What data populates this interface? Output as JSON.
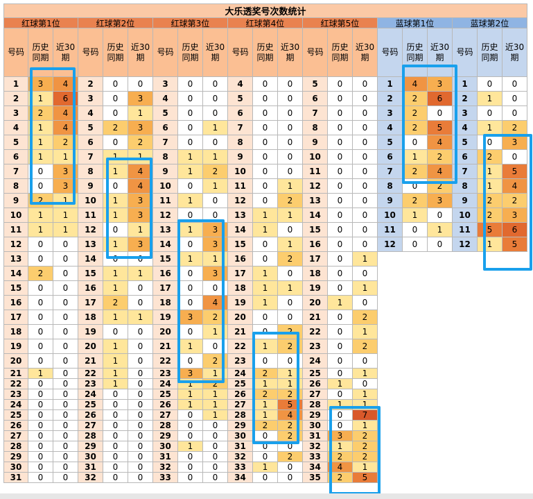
{
  "title": "大乐透奖号次数统计",
  "groups": [
    {
      "label": "红球第1位",
      "kind": "red"
    },
    {
      "label": "红球第2位",
      "kind": "red"
    },
    {
      "label": "红球第3位",
      "kind": "red"
    },
    {
      "label": "红球第4位",
      "kind": "red"
    },
    {
      "label": "红球第5位",
      "kind": "red"
    },
    {
      "label": "蓝球第1位",
      "kind": "blue"
    },
    {
      "label": "蓝球第2位",
      "kind": "blue"
    }
  ],
  "headers": {
    "num": "号码",
    "hist": "历史同期",
    "last30": "近30期"
  },
  "colors": {
    "red_group": "#e9824f",
    "blue_group": "#8fb4e3",
    "highlight": "#19a0ec"
  },
  "table": [
    [
      [
        1,
        3,
        4
      ],
      [
        2,
        0,
        0
      ],
      [
        3,
        0,
        0
      ],
      [
        4,
        0,
        0
      ],
      [
        5,
        0,
        0
      ],
      [
        1,
        4,
        3
      ],
      [
        1,
        0,
        0
      ]
    ],
    [
      [
        2,
        1,
        6
      ],
      [
        3,
        0,
        3
      ],
      [
        4,
        0,
        0
      ],
      [
        5,
        0,
        0
      ],
      [
        6,
        0,
        0
      ],
      [
        2,
        2,
        6
      ],
      [
        2,
        1,
        0
      ]
    ],
    [
      [
        3,
        2,
        4
      ],
      [
        4,
        0,
        1
      ],
      [
        5,
        0,
        0
      ],
      [
        6,
        0,
        0
      ],
      [
        7,
        0,
        0
      ],
      [
        3,
        2,
        0
      ],
      [
        3,
        0,
        0
      ]
    ],
    [
      [
        4,
        1,
        4
      ],
      [
        5,
        2,
        3
      ],
      [
        6,
        0,
        1
      ],
      [
        7,
        0,
        0
      ],
      [
        8,
        0,
        0
      ],
      [
        4,
        2,
        5
      ],
      [
        4,
        1,
        2
      ]
    ],
    [
      [
        5,
        1,
        2
      ],
      [
        6,
        0,
        2
      ],
      [
        7,
        0,
        0
      ],
      [
        8,
        0,
        0
      ],
      [
        9,
        0,
        0
      ],
      [
        5,
        0,
        4
      ],
      [
        5,
        0,
        3
      ]
    ],
    [
      [
        6,
        1,
        1
      ],
      [
        7,
        1,
        1
      ],
      [
        8,
        1,
        1
      ],
      [
        9,
        0,
        0
      ],
      [
        10,
        0,
        0
      ],
      [
        6,
        1,
        2
      ],
      [
        6,
        2,
        0
      ]
    ],
    [
      [
        7,
        0,
        3
      ],
      [
        8,
        1,
        4
      ],
      [
        9,
        1,
        2
      ],
      [
        10,
        0,
        0
      ],
      [
        11,
        0,
        0
      ],
      [
        7,
        2,
        4
      ],
      [
        7,
        1,
        5
      ]
    ],
    [
      [
        8,
        0,
        3
      ],
      [
        9,
        0,
        4
      ],
      [
        10,
        0,
        1
      ],
      [
        11,
        0,
        1
      ],
      [
        12,
        0,
        0
      ],
      [
        8,
        0,
        2
      ],
      [
        8,
        1,
        4
      ]
    ],
    [
      [
        9,
        2,
        1
      ],
      [
        10,
        1,
        3
      ],
      [
        11,
        1,
        0
      ],
      [
        12,
        0,
        2
      ],
      [
        13,
        0,
        0
      ],
      [
        9,
        2,
        3
      ],
      [
        9,
        2,
        2
      ]
    ],
    [
      [
        10,
        1,
        1
      ],
      [
        11,
        1,
        3
      ],
      [
        12,
        0,
        0
      ],
      [
        13,
        1,
        1
      ],
      [
        14,
        0,
        0
      ],
      [
        10,
        1,
        0
      ],
      [
        10,
        2,
        3
      ]
    ],
    [
      [
        11,
        1,
        1
      ],
      [
        12,
        0,
        1
      ],
      [
        13,
        1,
        3
      ],
      [
        14,
        1,
        0
      ],
      [
        15,
        0,
        0
      ],
      [
        11,
        0,
        1
      ],
      [
        11,
        5,
        6
      ]
    ],
    [
      [
        12,
        0,
        0
      ],
      [
        13,
        1,
        3
      ],
      [
        14,
        0,
        3
      ],
      [
        15,
        0,
        1
      ],
      [
        16,
        0,
        0
      ],
      [
        12,
        0,
        0
      ],
      [
        12,
        1,
        5
      ]
    ],
    [
      [
        13,
        0,
        0
      ],
      [
        14,
        0,
        0
      ],
      [
        15,
        1,
        1
      ],
      [
        16,
        0,
        2
      ],
      [
        17,
        0,
        1
      ],
      null,
      null
    ],
    [
      [
        14,
        2,
        0
      ],
      [
        15,
        1,
        1
      ],
      [
        16,
        0,
        3
      ],
      [
        17,
        1,
        0
      ],
      [
        18,
        0,
        0
      ],
      null,
      null
    ],
    [
      [
        15,
        0,
        0
      ],
      [
        16,
        1,
        0
      ],
      [
        17,
        0,
        0
      ],
      [
        18,
        1,
        1
      ],
      [
        19,
        0,
        1
      ],
      null,
      null
    ],
    [
      [
        16,
        0,
        0
      ],
      [
        17,
        2,
        0
      ],
      [
        18,
        0,
        4
      ],
      [
        19,
        1,
        0
      ],
      [
        20,
        1,
        0
      ],
      null,
      null
    ],
    [
      [
        17,
        0,
        0
      ],
      [
        18,
        1,
        1
      ],
      [
        19,
        3,
        2
      ],
      [
        20,
        0,
        0
      ],
      [
        21,
        0,
        2
      ],
      null,
      null
    ],
    [
      [
        18,
        0,
        0
      ],
      [
        19,
        0,
        0
      ],
      [
        20,
        0,
        1
      ],
      [
        21,
        0,
        2
      ],
      [
        22,
        0,
        1
      ],
      null,
      null
    ],
    [
      [
        19,
        0,
        0
      ],
      [
        20,
        1,
        0
      ],
      [
        21,
        1,
        0
      ],
      [
        22,
        1,
        2
      ],
      [
        23,
        0,
        2
      ],
      null,
      null
    ],
    [
      [
        20,
        0,
        0
      ],
      [
        21,
        1,
        0
      ],
      [
        22,
        0,
        2
      ],
      [
        23,
        0,
        0
      ],
      [
        24,
        0,
        0
      ],
      null,
      null
    ],
    [
      [
        21,
        1,
        0
      ],
      [
        22,
        1,
        0
      ],
      [
        23,
        3,
        1
      ],
      [
        24,
        2,
        1
      ],
      [
        25,
        0,
        1
      ],
      null,
      null
    ],
    [
      [
        22,
        0,
        0
      ],
      [
        23,
        1,
        0
      ],
      [
        24,
        1,
        2
      ],
      [
        25,
        1,
        1
      ],
      [
        26,
        1,
        0
      ],
      null,
      null
    ],
    [
      [
        23,
        0,
        0
      ],
      [
        24,
        0,
        0
      ],
      [
        25,
        1,
        1
      ],
      [
        26,
        2,
        2
      ],
      [
        27,
        0,
        1
      ],
      null,
      null
    ],
    [
      [
        24,
        0,
        0
      ],
      [
        25,
        0,
        0
      ],
      [
        26,
        1,
        1
      ],
      [
        27,
        1,
        5
      ],
      [
        28,
        1,
        1
      ],
      null,
      null
    ],
    [
      [
        25,
        0,
        0
      ],
      [
        26,
        0,
        0
      ],
      [
        27,
        0,
        1
      ],
      [
        28,
        1,
        4
      ],
      [
        29,
        0,
        7
      ],
      null,
      null
    ],
    [
      [
        26,
        0,
        0
      ],
      [
        27,
        0,
        0
      ],
      [
        28,
        0,
        0
      ],
      [
        29,
        2,
        2
      ],
      [
        30,
        0,
        1
      ],
      null,
      null
    ],
    [
      [
        27,
        0,
        0
      ],
      [
        28,
        0,
        0
      ],
      [
        29,
        0,
        0
      ],
      [
        30,
        0,
        2
      ],
      [
        31,
        3,
        2
      ],
      null,
      null
    ],
    [
      [
        28,
        0,
        0
      ],
      [
        29,
        0,
        0
      ],
      [
        30,
        1,
        0
      ],
      [
        31,
        0,
        0
      ],
      [
        32,
        1,
        2
      ],
      null,
      null
    ],
    [
      [
        29,
        0,
        0
      ],
      [
        30,
        0,
        0
      ],
      [
        31,
        0,
        0
      ],
      [
        32,
        0,
        2
      ],
      [
        33,
        2,
        2
      ],
      null,
      null
    ],
    [
      [
        30,
        0,
        0
      ],
      [
        31,
        0,
        0
      ],
      [
        32,
        0,
        0
      ],
      [
        33,
        1,
        0
      ],
      [
        34,
        4,
        1
      ],
      null,
      null
    ],
    [
      [
        31,
        0,
        0
      ],
      [
        32,
        0,
        0
      ],
      [
        33,
        0,
        0
      ],
      [
        34,
        0,
        0
      ],
      [
        35,
        2,
        5
      ],
      null,
      null
    ]
  ]
}
